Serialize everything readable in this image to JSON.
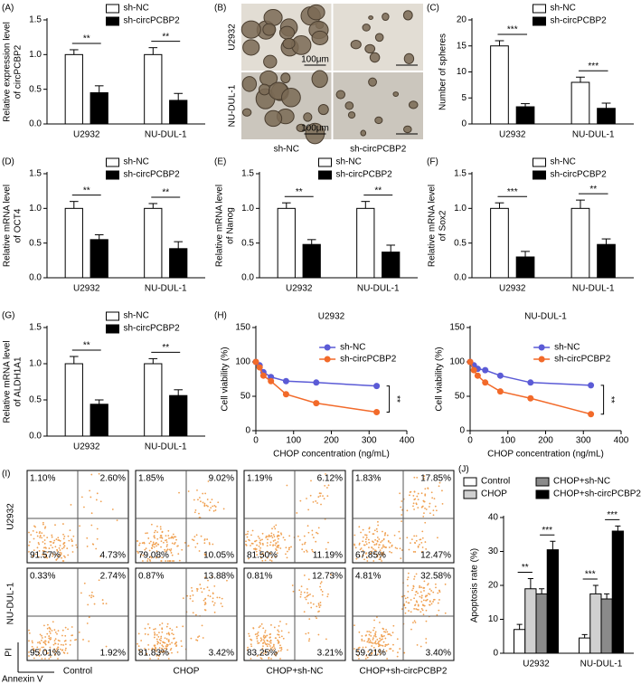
{
  "chart_data": [
    {
      "type": "bar",
      "panel": "(A)",
      "ylabel": [
        "Relative expression level",
        "of circPCBP2"
      ],
      "categories": [
        "U2932",
        "NU-DUL-1"
      ],
      "series": [
        {
          "name": "sh-NC",
          "color": "#ffffff",
          "values": [
            1.0,
            1.0
          ],
          "errors": [
            0.07,
            0.1
          ]
        },
        {
          "name": "sh-circPCBP2",
          "color": "#000000",
          "values": [
            0.45,
            0.34
          ],
          "errors": [
            0.1,
            0.1
          ]
        }
      ],
      "ylim": [
        0,
        1.5
      ],
      "yticks": [
        {
          "value": 0,
          "label": "0.0"
        },
        0.5,
        {
          "value": 1,
          "label": "1.0"
        },
        1.5
      ],
      "significance": [
        [
          "**"
        ],
        [
          "**"
        ]
      ]
    },
    {
      "type": "image",
      "panel": "(B)",
      "rows": [
        "U2932",
        "NU-DUL-1"
      ],
      "columns": [
        "sh-NC",
        "sh-circPCBP2"
      ],
      "scale_labels": [
        "100μm",
        "100μm"
      ]
    },
    {
      "type": "bar",
      "panel": "(C)",
      "ylabel": [
        "Number of spheres"
      ],
      "categories": [
        "U2932",
        "NU-DUL-1"
      ],
      "series": [
        {
          "name": "sh-NC",
          "color": "#ffffff",
          "values": [
            15,
            8
          ],
          "errors": [
            1,
            1
          ]
        },
        {
          "name": "sh-circPCBP2",
          "color": "#000000",
          "values": [
            3.3,
            3
          ],
          "errors": [
            0.6,
            1
          ]
        }
      ],
      "ylim": [
        0,
        20
      ],
      "yticks": [
        0,
        5,
        10,
        15,
        20
      ],
      "significance": [
        [
          "***"
        ],
        [
          "***"
        ]
      ]
    },
    {
      "type": "bar",
      "panel": "(D)",
      "ylabel": [
        "Relative mRNA level",
        "of OCT4"
      ],
      "categories": [
        "U2932",
        "NU-DUL-1"
      ],
      "series": [
        {
          "name": "sh-NC",
          "color": "#ffffff",
          "values": [
            1.0,
            1.0
          ],
          "errors": [
            0.1,
            0.07
          ]
        },
        {
          "name": "sh-circPCBP2",
          "color": "#000000",
          "values": [
            0.55,
            0.42
          ],
          "errors": [
            0.07,
            0.1
          ]
        }
      ],
      "ylim": [
        0,
        1.5
      ],
      "yticks": [
        {
          "value": 0,
          "label": "0.0"
        },
        0.5,
        {
          "value": 1,
          "label": "1.0"
        },
        1.5
      ],
      "significance": [
        [
          "**"
        ],
        [
          "**"
        ]
      ]
    },
    {
      "type": "bar",
      "panel": "(E)",
      "ylabel": [
        "Relative mRNA level",
        "of Nanog"
      ],
      "categories": [
        "U2932",
        "NU-DUL-1"
      ],
      "series": [
        {
          "name": "sh-NC",
          "color": "#ffffff",
          "values": [
            1.0,
            1.0
          ],
          "errors": [
            0.08,
            0.1
          ]
        },
        {
          "name": "sh-circPCBP2",
          "color": "#000000",
          "values": [
            0.48,
            0.37
          ],
          "errors": [
            0.07,
            0.1
          ]
        }
      ],
      "ylim": [
        0,
        1.5
      ],
      "yticks": [
        {
          "value": 0,
          "label": "0.0"
        },
        0.5,
        {
          "value": 1,
          "label": "1.0"
        },
        1.5
      ],
      "significance": [
        [
          "**"
        ],
        [
          "**"
        ]
      ]
    },
    {
      "type": "bar",
      "panel": "(F)",
      "ylabel": [
        "Relative mRNA level",
        "of Sox2"
      ],
      "categories": [
        "U2932",
        "NU-DUL-1"
      ],
      "series": [
        {
          "name": "sh-NC",
          "color": "#ffffff",
          "values": [
            1.0,
            1.0
          ],
          "errors": [
            0.08,
            0.12
          ]
        },
        {
          "name": "sh-circPCBP2",
          "color": "#000000",
          "values": [
            0.3,
            0.48
          ],
          "errors": [
            0.08,
            0.08
          ]
        }
      ],
      "ylim": [
        0,
        1.5
      ],
      "yticks": [
        {
          "value": 0,
          "label": "0.0"
        },
        0.5,
        {
          "value": 1,
          "label": "1.0"
        },
        1.5
      ],
      "significance": [
        [
          "***"
        ],
        [
          "**"
        ]
      ]
    },
    {
      "type": "bar",
      "panel": "(G)",
      "ylabel": [
        "Relative mRNA level",
        "of ALDH1A1"
      ],
      "categories": [
        "U2932",
        "NU-DUL-1"
      ],
      "series": [
        {
          "name": "sh-NC",
          "color": "#ffffff",
          "values": [
            1.0,
            1.0
          ],
          "errors": [
            0.1,
            0.07
          ]
        },
        {
          "name": "sh-circPCBP2",
          "color": "#000000",
          "values": [
            0.44,
            0.56
          ],
          "errors": [
            0.06,
            0.08
          ]
        }
      ],
      "ylim": [
        0,
        1.5
      ],
      "yticks": [
        {
          "value": 0,
          "label": "0.0"
        },
        0.5,
        {
          "value": 1,
          "label": "1.0"
        },
        1.5
      ],
      "significance": [
        [
          "**"
        ],
        [
          "**"
        ]
      ]
    },
    {
      "type": "line",
      "panel": "(H)",
      "title": "U2932",
      "xlabel": "CHOP concentration (ng/mL)",
      "ylabel": "Cell viability (%)",
      "x": [
        0,
        10,
        20,
        40,
        80,
        160,
        320
      ],
      "series": [
        {
          "name": "sh-NC",
          "color": "#5b5bd6",
          "values": [
            100,
            95,
            85,
            78,
            72,
            70,
            65
          ]
        },
        {
          "name": "sh-circPCBP2",
          "color": "#f26a2a",
          "values": [
            100,
            92,
            80,
            72,
            53,
            40,
            27
          ]
        }
      ],
      "xlim": [
        0,
        400
      ],
      "xticks": [
        0,
        100,
        200,
        300,
        400
      ],
      "ylim": [
        0,
        150
      ],
      "yticks": [
        0,
        50,
        100,
        150
      ],
      "annotation": "**"
    },
    {
      "type": "line",
      "title": "NU-DUL-1",
      "xlabel": "CHOP concentration (ng/mL)",
      "ylabel": "Cell viability (%)",
      "x": [
        0,
        10,
        20,
        40,
        80,
        160,
        320
      ],
      "series": [
        {
          "name": "sh-NC",
          "color": "#5b5bd6",
          "values": [
            100,
            95,
            90,
            88,
            80,
            70,
            66
          ]
        },
        {
          "name": "sh-circPCBP2",
          "color": "#f26a2a",
          "values": [
            100,
            88,
            80,
            70,
            57,
            47,
            24
          ]
        }
      ],
      "xlim": [
        0,
        400
      ],
      "xticks": [
        0,
        100,
        200,
        300,
        400
      ],
      "ylim": [
        0,
        150
      ],
      "yticks": [
        0,
        50,
        100,
        150
      ],
      "annotation": "**"
    },
    {
      "type": "flow",
      "panel": "(I)",
      "xlabel": "Annexin V",
      "ylabel": "PI",
      "rows": [
        "U2932",
        "NU-DUL-1"
      ],
      "columns": [
        "Control",
        "CHOP",
        "CHOP+sh-NC",
        "CHOP+sh-circPCBP2"
      ],
      "plots": [
        [
          {
            "values": [
              1.1,
              2.6,
              91.57,
              4.73
            ],
            "value_labels": [
              "1.10%",
              "2.60%",
              "91.57%",
              "4.73%"
            ]
          },
          {
            "values": [
              1.85,
              9.02,
              79.08,
              10.05
            ],
            "value_labels": [
              "1.85%",
              "9.02%",
              "79.08%",
              "10.05%"
            ]
          },
          {
            "values": [
              1.19,
              6.12,
              81.5,
              11.19
            ],
            "value_labels": [
              "1.19%",
              "6.12%",
              "81.50%",
              "11.19%"
            ]
          },
          {
            "values": [
              1.83,
              17.85,
              67.85,
              12.47
            ],
            "value_labels": [
              "1.83%",
              "17.85%",
              "67.85%",
              "12.47%"
            ]
          }
        ],
        [
          {
            "values": [
              0.33,
              2.74,
              95.01,
              1.92
            ],
            "value_labels": [
              "0.33%",
              "2.74%",
              "95.01%",
              "1.92%"
            ]
          },
          {
            "values": [
              0.87,
              13.88,
              81.83,
              3.42
            ],
            "value_labels": [
              "0.87%",
              "13.88%",
              "81.83%",
              "3.42%"
            ]
          },
          {
            "values": [
              0.81,
              12.73,
              83.25,
              3.21
            ],
            "value_labels": [
              "0.81%",
              "12.73%",
              "83.25%",
              "3.21%"
            ]
          },
          {
            "values": [
              4.81,
              32.58,
              59.21,
              3.4
            ],
            "value_labels": [
              "4.81%",
              "32.58%",
              "59.21%",
              "3.40%"
            ]
          }
        ]
      ]
    },
    {
      "type": "bar",
      "panel": "(J)",
      "ylabel": [
        "Apoptosis rate (%)"
      ],
      "categories": [
        "U2932",
        "NU-DUL-1"
      ],
      "series": [
        {
          "name": "Control",
          "color": "#ffffff",
          "values": [
            7,
            4.5
          ],
          "errors": [
            1.5,
            1
          ]
        },
        {
          "name": "CHOP",
          "color": "#d0d0d0",
          "values": [
            19,
            17.5
          ],
          "errors": [
            3,
            2.5
          ]
        },
        {
          "name": "CHOP+sh-NC",
          "color": "#8a8a8a",
          "values": [
            17.5,
            16
          ],
          "errors": [
            1.5,
            1.5
          ]
        },
        {
          "name": "CHOP+sh-circPCBP2",
          "color": "#000000",
          "values": [
            30.5,
            36
          ],
          "errors": [
            2.5,
            1.5
          ]
        }
      ],
      "ylim": [
        0,
        40
      ],
      "yticks": [
        0,
        10,
        20,
        30,
        40
      ],
      "significance": [
        [
          "**",
          "***"
        ],
        [
          "***",
          "***"
        ]
      ]
    }
  ]
}
